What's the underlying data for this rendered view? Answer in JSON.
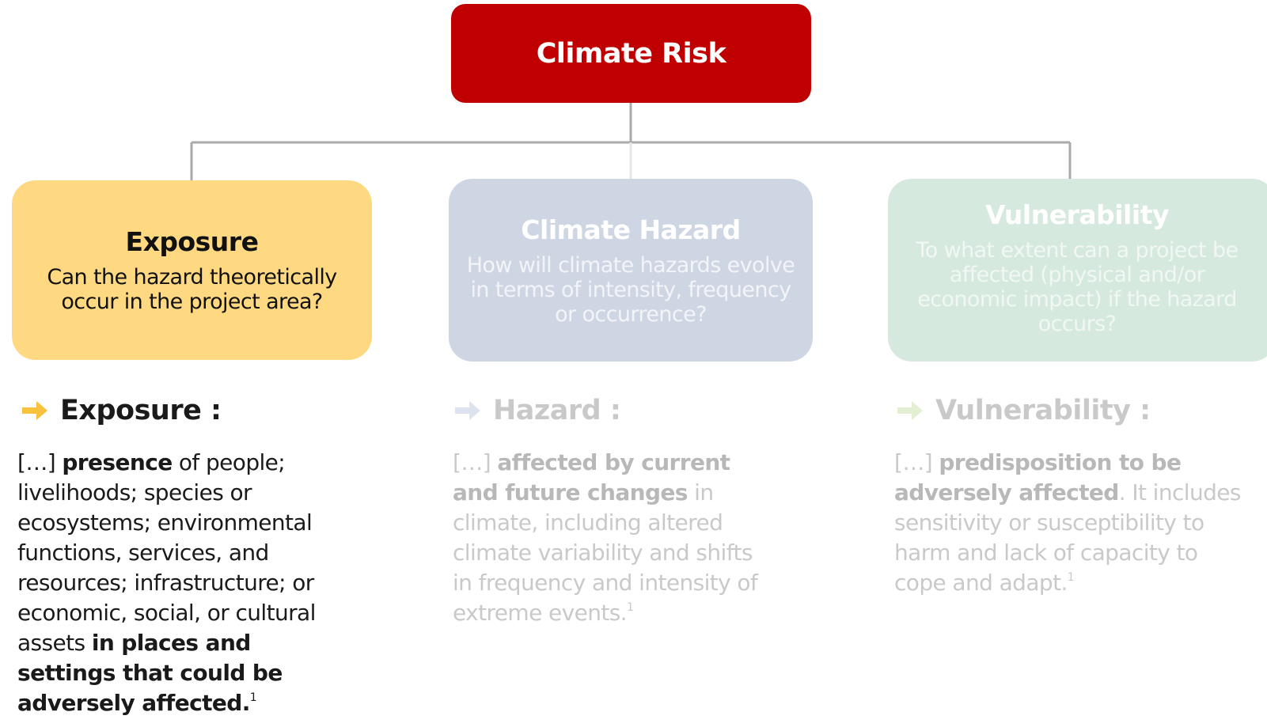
{
  "root": {
    "label": "Climate Risk"
  },
  "nodes": [
    {
      "title": "Exposure",
      "question": "Can the hazard theoretically occur in the project area?"
    },
    {
      "title": "Climate Hazard",
      "question": "How will climate hazards evolve in terms of intensity, frequency or occurrence?"
    },
    {
      "title": "Vulnerability",
      "question": "To what extent can a project be affected (physical and/or economic impact) if the hazard occurs?"
    }
  ],
  "definitions": [
    {
      "heading": "Exposure :",
      "segments": [
        {
          "text": "[…] ",
          "bold": false
        },
        {
          "text": "presence",
          "bold": true
        },
        {
          "text": " of people; livelihoods; species or ecosystems; environmental functions, services, and resources; infrastructure; or economic, social, or cultural assets ",
          "bold": false
        },
        {
          "text": "in places and settings that could be adversely affected.",
          "bold": true
        }
      ],
      "footnote": "1"
    },
    {
      "heading": "Hazard :",
      "segments": [
        {
          "text": "[…] ",
          "bold": false
        },
        {
          "text": "affected by current and future changes",
          "bold": true
        },
        {
          "text": " in climate, including altered climate variability and shifts in frequency and intensity of extreme events.",
          "bold": false
        }
      ],
      "footnote": "1"
    },
    {
      "heading": "Vulnerability :",
      "segments": [
        {
          "text": "[…] ",
          "bold": false
        },
        {
          "text": "predisposition to be adversely affected",
          "bold": true
        },
        {
          "text": ". It includes sensitivity or susceptibility to harm and lack of capacity to cope and adapt.",
          "bold": false
        }
      ],
      "footnote": "1"
    }
  ]
}
